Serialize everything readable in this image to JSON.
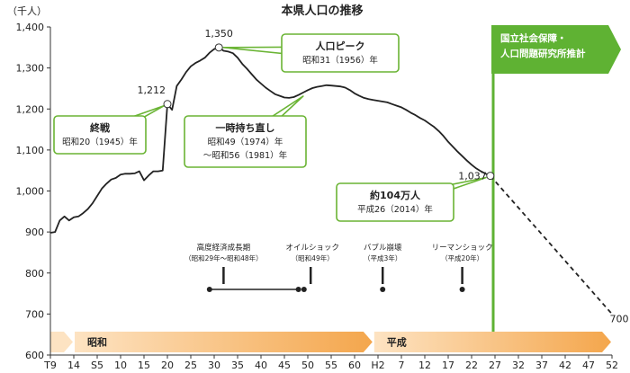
{
  "chart_data": {
    "type": "line",
    "title": "本県人口の推移",
    "ylabel": "（千人）",
    "ylim": [
      600,
      1400
    ],
    "yticks": [
      {
        "v": 600,
        "label": "600"
      },
      {
        "v": 700,
        "label": "700"
      },
      {
        "v": 800,
        "label": "800"
      },
      {
        "v": 900,
        "label": "900"
      },
      {
        "v": 1000,
        "label": "1,000"
      },
      {
        "v": 1100,
        "label": "1,100"
      },
      {
        "v": 1200,
        "label": "1,200"
      },
      {
        "v": 1300,
        "label": "1,300"
      },
      {
        "v": 1400,
        "label": "1,400"
      }
    ],
    "xlim": [
      1920,
      2040
    ],
    "xticks": [
      {
        "year": 1920,
        "label": "T9"
      },
      {
        "year": 1925,
        "label": "14"
      },
      {
        "year": 1930,
        "label": "S5"
      },
      {
        "year": 1935,
        "label": "10"
      },
      {
        "year": 1940,
        "label": "15"
      },
      {
        "year": 1945,
        "label": "20"
      },
      {
        "year": 1950,
        "label": "25"
      },
      {
        "year": 1955,
        "label": "30"
      },
      {
        "year": 1960,
        "label": "35"
      },
      {
        "year": 1965,
        "label": "40"
      },
      {
        "year": 1970,
        "label": "45"
      },
      {
        "year": 1975,
        "label": "50"
      },
      {
        "year": 1980,
        "label": "55"
      },
      {
        "year": 1985,
        "label": "60"
      },
      {
        "year": 1990,
        "label": "H2"
      },
      {
        "year": 1995,
        "label": "7"
      },
      {
        "year": 2000,
        "label": "12"
      },
      {
        "year": 2005,
        "label": "17"
      },
      {
        "year": 2010,
        "label": "22"
      },
      {
        "year": 2015,
        "label": "27"
      },
      {
        "year": 2020,
        "label": "32"
      },
      {
        "year": 2025,
        "label": "37"
      },
      {
        "year": 2030,
        "label": "42"
      },
      {
        "year": 2035,
        "label": "47"
      },
      {
        "year": 2040,
        "label": "52"
      }
    ],
    "series": [
      {
        "style": "solid",
        "color": "#222222",
        "points": [
          [
            1920,
            898
          ],
          [
            1921,
            900
          ],
          [
            1922,
            928
          ],
          [
            1923,
            938
          ],
          [
            1924,
            928
          ],
          [
            1925,
            936
          ],
          [
            1926,
            938
          ],
          [
            1927,
            946
          ],
          [
            1928,
            956
          ],
          [
            1929,
            970
          ],
          [
            1930,
            988
          ],
          [
            1931,
            1006
          ],
          [
            1932,
            1018
          ],
          [
            1933,
            1028
          ],
          [
            1934,
            1032
          ],
          [
            1935,
            1040
          ],
          [
            1936,
            1042
          ],
          [
            1937,
            1042
          ],
          [
            1938,
            1043
          ],
          [
            1939,
            1048
          ],
          [
            1940,
            1026
          ],
          [
            1941,
            1038
          ],
          [
            1942,
            1048
          ],
          [
            1943,
            1048
          ],
          [
            1944,
            1050
          ],
          [
            1945,
            1212
          ],
          [
            1946,
            1198
          ],
          [
            1947,
            1256
          ],
          [
            1948,
            1272
          ],
          [
            1949,
            1290
          ],
          [
            1950,
            1304
          ],
          [
            1951,
            1312
          ],
          [
            1952,
            1318
          ],
          [
            1953,
            1325
          ],
          [
            1954,
            1337
          ],
          [
            1955,
            1346
          ],
          [
            1956,
            1350
          ],
          [
            1957,
            1342
          ],
          [
            1958,
            1340
          ],
          [
            1959,
            1336
          ],
          [
            1960,
            1325
          ],
          [
            1961,
            1310
          ],
          [
            1962,
            1298
          ],
          [
            1963,
            1285
          ],
          [
            1964,
            1272
          ],
          [
            1965,
            1262
          ],
          [
            1966,
            1252
          ],
          [
            1967,
            1244
          ],
          [
            1968,
            1236
          ],
          [
            1969,
            1232
          ],
          [
            1970,
            1228
          ],
          [
            1971,
            1227
          ],
          [
            1972,
            1229
          ],
          [
            1973,
            1234
          ],
          [
            1974,
            1240
          ],
          [
            1975,
            1246
          ],
          [
            1976,
            1251
          ],
          [
            1977,
            1254
          ],
          [
            1978,
            1256
          ],
          [
            1979,
            1258
          ],
          [
            1980,
            1257
          ],
          [
            1981,
            1256
          ],
          [
            1982,
            1255
          ],
          [
            1983,
            1252
          ],
          [
            1984,
            1246
          ],
          [
            1985,
            1238
          ],
          [
            1986,
            1232
          ],
          [
            1987,
            1227
          ],
          [
            1988,
            1224
          ],
          [
            1989,
            1222
          ],
          [
            1990,
            1220
          ],
          [
            1991,
            1218
          ],
          [
            1992,
            1216
          ],
          [
            1993,
            1212
          ],
          [
            1994,
            1208
          ],
          [
            1995,
            1204
          ],
          [
            1996,
            1198
          ],
          [
            1997,
            1191
          ],
          [
            1998,
            1185
          ],
          [
            1999,
            1178
          ],
          [
            2000,
            1172
          ],
          [
            2001,
            1164
          ],
          [
            2002,
            1156
          ],
          [
            2003,
            1146
          ],
          [
            2004,
            1134
          ],
          [
            2005,
            1120
          ],
          [
            2006,
            1108
          ],
          [
            2007,
            1096
          ],
          [
            2008,
            1085
          ],
          [
            2009,
            1074
          ],
          [
            2010,
            1064
          ],
          [
            2011,
            1055
          ],
          [
            2012,
            1048
          ],
          [
            2013,
            1042
          ],
          [
            2014,
            1037
          ]
        ]
      },
      {
        "style": "dashed",
        "color": "#222222",
        "points": [
          [
            2014,
            1037
          ],
          [
            2040,
            700
          ]
        ]
      }
    ],
    "points": [
      {
        "year": 1945,
        "value": 1212,
        "label": "1,212"
      },
      {
        "year": 1956,
        "value": 1350,
        "label": "1,350"
      },
      {
        "year": 2014,
        "value": 1037,
        "label": "1,037"
      },
      {
        "year": 2040,
        "value": 700,
        "label": "700"
      }
    ],
    "callouts": [
      {
        "id": "peak",
        "title": "人口ピーク",
        "sub": "昭和31（1956）年"
      },
      {
        "id": "war-end",
        "title": "終戦",
        "sub": "昭和20（1945）年"
      },
      {
        "id": "recovery",
        "title": "一時持ち直し",
        "sub": "昭和49（1974）年",
        "sub2": "～昭和56（1981）年"
      },
      {
        "id": "latest",
        "title": "約104万人",
        "sub": "平成26（2014）年"
      }
    ],
    "projection_label": [
      "国立社会保障・",
      "人口問題研究所推計"
    ],
    "projection_start_year": 2015,
    "events": [
      {
        "id": "high-growth",
        "label": "高度経済成長期",
        "sub": "（昭和29年～昭和48年）",
        "start": 1954,
        "end": 1973
      },
      {
        "id": "oil-shock",
        "label": "オイルショック",
        "sub": "（昭和49年）",
        "start": 1973,
        "end": 1974
      },
      {
        "id": "bubble",
        "label": "バブル崩壊",
        "sub": "（平成3年）",
        "start": 1991,
        "end": 1991
      },
      {
        "id": "lehman",
        "label": "リーマンショック",
        "sub": "（平成20年）",
        "start": 2008,
        "end": 2008
      }
    ],
    "eras": [
      {
        "label": "",
        "start": 1920,
        "end": 1925
      },
      {
        "label": "昭和",
        "start": 1925,
        "end": 1989
      },
      {
        "label": "平成",
        "start": 1989,
        "end": 2040
      }
    ],
    "colors": {
      "callout_border": "#6ab434",
      "projection": "#5fb233",
      "era_light": "#fde3c2",
      "era_dark": "#f4a64c",
      "line": "#222222"
    }
  }
}
